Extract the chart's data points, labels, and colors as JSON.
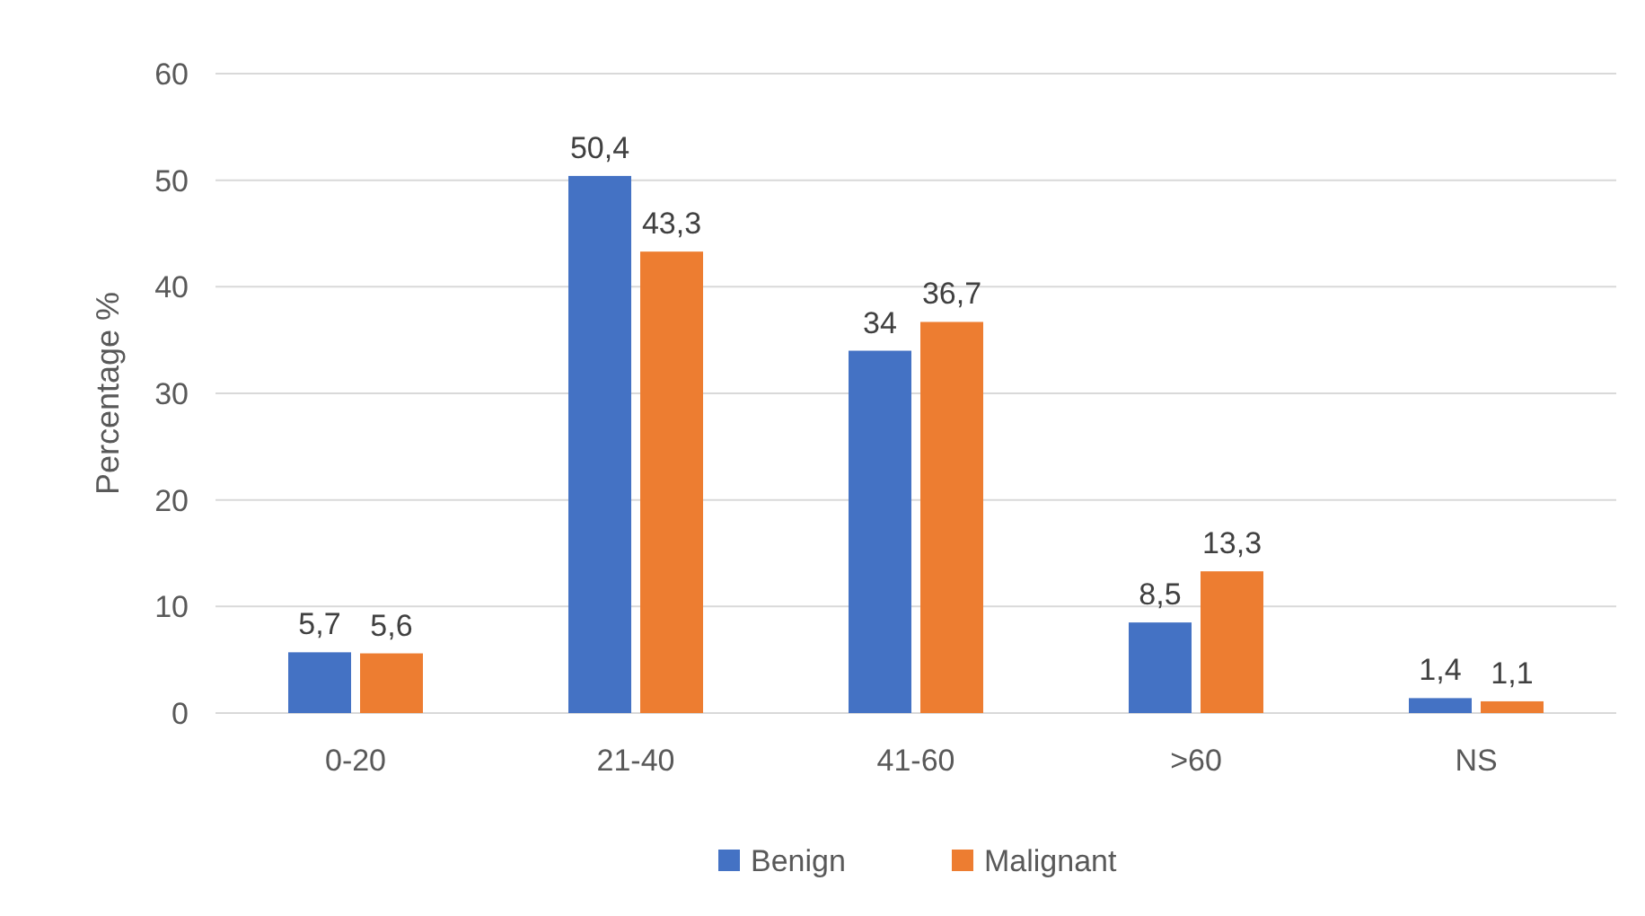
{
  "chart_data": {
    "type": "bar",
    "ylabel": "Percentage %",
    "categories": [
      "0-20",
      "21-40",
      "41-60",
      ">60",
      "NS"
    ],
    "series": [
      {
        "name": "Benign",
        "color": "#4472c4",
        "values": [
          5.7,
          50.4,
          34,
          8.5,
          1.4
        ],
        "value_labels": [
          "5,7",
          "50,4",
          "34",
          "8,5",
          "1,4"
        ]
      },
      {
        "name": "Malignant",
        "color": "#ed7d31",
        "values": [
          5.6,
          43.3,
          36.7,
          13.3,
          1.1
        ],
        "value_labels": [
          "5,6",
          "43,3",
          "36,7",
          "13,3",
          "1,1"
        ]
      }
    ],
    "ylim": [
      0,
      60
    ],
    "yticks": [
      0,
      10,
      20,
      30,
      40,
      50,
      60
    ],
    "grid": "y",
    "legend": "bottom"
  }
}
